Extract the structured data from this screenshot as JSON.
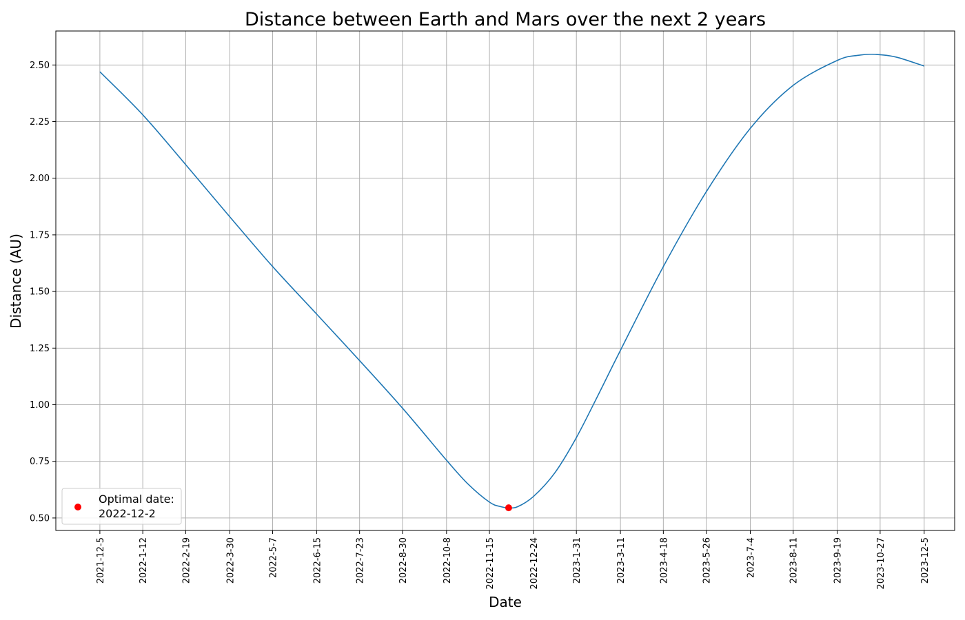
{
  "chart_data": {
    "type": "line",
    "title": "Distance between Earth and Mars over the next 2 years",
    "xlabel": "Date",
    "ylabel": "Distance (AU)",
    "grid": true,
    "legend_position": "bottom-left",
    "x_ticks": [
      "2021-12-5",
      "2022-1-12",
      "2022-2-19",
      "2022-3-30",
      "2022-5-7",
      "2022-6-15",
      "2022-7-23",
      "2022-8-30",
      "2022-10-8",
      "2022-11-15",
      "2022-12-24",
      "2023-1-31",
      "2023-3-11",
      "2023-4-18",
      "2023-5-26",
      "2023-7-4",
      "2023-8-11",
      "2023-9-19",
      "2023-10-27",
      "2023-12-5"
    ],
    "xlim": [
      "2021-10-27",
      "2024-1-1"
    ],
    "y_ticks": [
      0.5,
      0.75,
      1.0,
      1.25,
      1.5,
      1.75,
      2.0,
      2.25,
      2.5
    ],
    "ylim": [
      0.445,
      2.65
    ],
    "series": [
      {
        "color": "#1f77b4",
        "x": [
          "2021-12-5",
          "2022-1-12",
          "2022-2-19",
          "2022-3-30",
          "2022-5-7",
          "2022-6-15",
          "2022-7-23",
          "2022-8-30",
          "2022-10-8",
          "2022-10-27",
          "2022-11-15",
          "2022-11-25",
          "2022-12-2",
          "2022-12-10",
          "2022-12-24",
          "2023-1-12",
          "2023-1-31",
          "2023-2-20",
          "2023-3-11",
          "2023-4-18",
          "2023-5-26",
          "2023-7-4",
          "2023-8-11",
          "2023-9-19",
          "2023-10-8",
          "2023-10-22",
          "2023-11-10",
          "2023-12-5"
        ],
        "y": [
          2.47,
          2.28,
          2.06,
          1.83,
          1.61,
          1.4,
          1.195,
          0.985,
          0.755,
          0.65,
          0.57,
          0.55,
          0.545,
          0.55,
          0.595,
          0.7,
          0.855,
          1.05,
          1.24,
          1.61,
          1.94,
          2.22,
          2.41,
          2.52,
          2.543,
          2.547,
          2.535,
          2.495
        ]
      }
    ],
    "highlight_point": {
      "label": "Optimal date:\n2022-12-2",
      "label_lines": [
        "Optimal date:",
        "2022-12-2"
      ],
      "x": "2022-12-2",
      "y": 0.545,
      "color": "#ff0000"
    }
  }
}
